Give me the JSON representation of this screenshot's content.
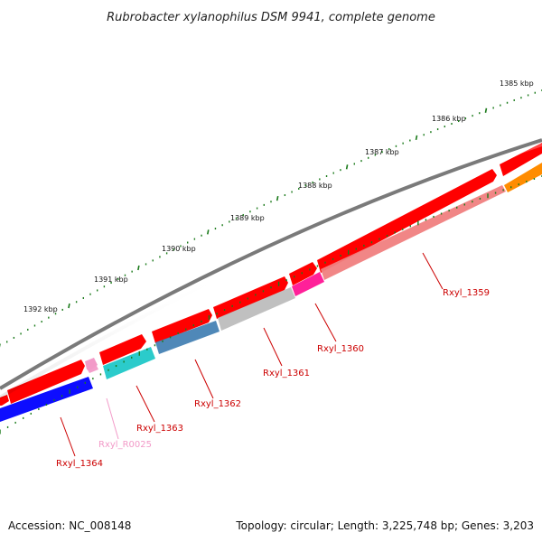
{
  "title": "Rubrobacter xylanophilus DSM 9941, complete genome",
  "footer": {
    "accession": "Accession: NC_008148",
    "summary": "Topology: circular; Length: 3,225,748 bp; Genes: 3,203"
  },
  "colors": {
    "backbone": "#7a7a7a",
    "forward_cds": "#ff0000",
    "ticks": "#1a7a1a",
    "label_default": "#cc0000",
    "label_rna": "#f29ac8"
  },
  "ticks": [
    "1385 kbp",
    "1386 kbp",
    "1387 kbp",
    "1388 kbp",
    "1389 kbp",
    "1390 kbp",
    "1391 kbp",
    "1392 kbp"
  ],
  "genes": [
    {
      "name": "Rxyl_1359",
      "color": "#f08080"
    },
    {
      "name": "Rxyl_1360",
      "color": "#ff1493"
    },
    {
      "name": "Rxyl_1361",
      "color": "#bdbdbd"
    },
    {
      "name": "Rxyl_1362",
      "color": "#4682b4"
    },
    {
      "name": "Rxyl_1363",
      "color": "#20c8c8"
    },
    {
      "name": "Rxyl_R0025",
      "color": "#f29ac8"
    },
    {
      "name": "Rxyl_1364",
      "color": "#0000ff"
    }
  ]
}
